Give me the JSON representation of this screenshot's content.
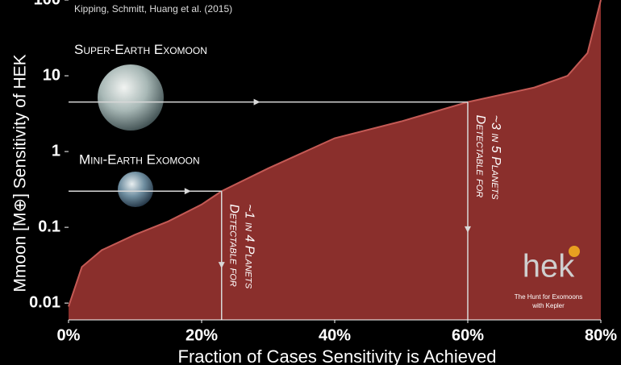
{
  "chart_data": {
    "type": "area",
    "source": "Kipping, Schmitt, Huang et al. (2015)",
    "x_label": "Fraction of Cases Sensitivity is Achieved",
    "y_label": "Mmoon [M⊕] Sensitivity of HEK",
    "x": [
      0,
      2,
      5,
      10,
      15,
      20,
      23,
      30,
      40,
      50,
      60,
      70,
      75,
      78,
      80
    ],
    "values": [
      0.009,
      0.03,
      0.05,
      0.08,
      0.12,
      0.2,
      0.3,
      0.6,
      1.5,
      2.5,
      4.5,
      7,
      10,
      20,
      100
    ],
    "color": "#8a2f2c",
    "edge_color": "#c45a55",
    "xlim": [
      0,
      80
    ],
    "xticks": [
      {
        "value": 0,
        "label": "0%"
      },
      {
        "value": 20,
        "label": "20%"
      },
      {
        "value": 40,
        "label": "40%"
      },
      {
        "value": 60,
        "label": "60%"
      },
      {
        "value": 80,
        "label": "80%"
      }
    ],
    "ylim": [
      0.006,
      100
    ],
    "yticks": [
      0.01,
      0.1,
      1,
      10,
      100
    ],
    "log_y": true,
    "markers": [
      {
        "label": "Super-Earth Exomoon",
        "x": 60,
        "y": 4.5,
        "note": [
          "Detectable for",
          "~3 in 5 Planets"
        ]
      },
      {
        "label": "Mini-Earth Exomoon",
        "x": 23,
        "y": 0.3,
        "note": [
          "Detectable for",
          "~1 in 4 Planets"
        ]
      }
    ],
    "logo": "hek",
    "logo_tagline": [
      "The Hunt for Exomoons",
      "with Kepler"
    ]
  }
}
